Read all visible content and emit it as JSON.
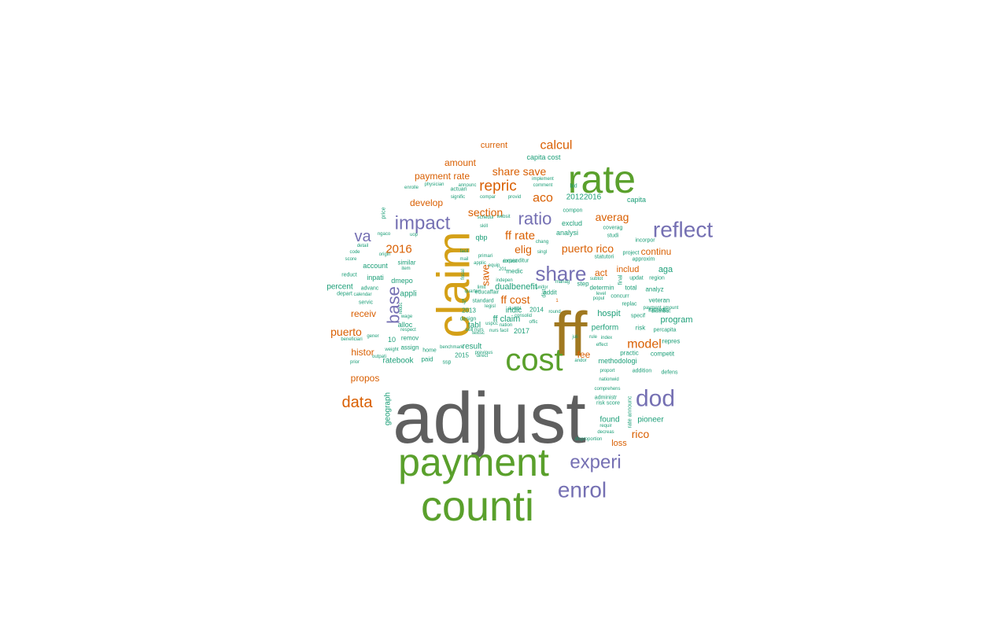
{
  "colors": {
    "gray": "#5f5f5f",
    "green": "#5aa02c",
    "gold": "#d4a017",
    "olive": "#a07820",
    "purple": "#7570b3",
    "orange": "#d95f02",
    "teal": "#1b9e77"
  },
  "words": [
    {
      "text": "adjust",
      "color": "gray"
    },
    {
      "text": "ff",
      "color": "olive"
    },
    {
      "text": "rate",
      "color": "green"
    },
    {
      "text": "counti",
      "color": "green"
    },
    {
      "text": "payment",
      "color": "green"
    },
    {
      "text": "claim",
      "color": "gold"
    },
    {
      "text": "cost",
      "color": "green"
    },
    {
      "text": "dod",
      "color": "purple"
    },
    {
      "text": "enrol",
      "color": "purple"
    },
    {
      "text": "reflect",
      "color": "purple"
    },
    {
      "text": "share",
      "color": "purple"
    },
    {
      "text": "impact",
      "color": "purple"
    },
    {
      "text": "experi",
      "color": "purple"
    },
    {
      "text": "ratio",
      "color": "purple"
    },
    {
      "text": "base",
      "color": "purple"
    },
    {
      "text": "va",
      "color": "purple"
    },
    {
      "text": "data",
      "color": "orange"
    },
    {
      "text": "repric",
      "color": "orange"
    },
    {
      "text": "model",
      "color": "orange"
    },
    {
      "text": "calcul",
      "color": "orange"
    },
    {
      "text": "aco",
      "color": "orange"
    },
    {
      "text": "averag",
      "color": "orange"
    },
    {
      "text": "section",
      "color": "orange"
    },
    {
      "text": "share save",
      "color": "orange"
    },
    {
      "text": "ff rate",
      "color": "orange"
    },
    {
      "text": "ff cost",
      "color": "orange"
    },
    {
      "text": "puerto rico",
      "color": "orange"
    },
    {
      "text": "puerto",
      "color": "orange"
    },
    {
      "text": "rico",
      "color": "orange"
    },
    {
      "text": "2016",
      "color": "orange"
    },
    {
      "text": "elig",
      "color": "orange"
    },
    {
      "text": "save",
      "color": "orange"
    },
    {
      "text": "fee",
      "color": "orange"
    },
    {
      "text": "develop",
      "color": "orange"
    },
    {
      "text": "amount",
      "color": "orange"
    },
    {
      "text": "payment rate",
      "color": "orange"
    },
    {
      "text": "propos",
      "color": "orange"
    },
    {
      "text": "histor",
      "color": "orange"
    },
    {
      "text": "continu",
      "color": "orange"
    },
    {
      "text": "act",
      "color": "orange"
    },
    {
      "text": "includ",
      "color": "orange"
    },
    {
      "text": "current",
      "color": "orange"
    },
    {
      "text": "receiv",
      "color": "orange"
    },
    {
      "text": "loss",
      "color": "orange"
    },
    {
      "text": "program",
      "color": "teal"
    },
    {
      "text": "aga",
      "color": "teal"
    },
    {
      "text": "hospit",
      "color": "teal"
    },
    {
      "text": "dualbenefit",
      "color": "teal"
    },
    {
      "text": "ff claim",
      "color": "teal"
    },
    {
      "text": "indic",
      "color": "teal"
    },
    {
      "text": "tabl",
      "color": "teal"
    },
    {
      "text": "result",
      "color": "teal"
    },
    {
      "text": "appli",
      "color": "teal"
    },
    {
      "text": "alloc",
      "color": "teal"
    },
    {
      "text": "dmepo",
      "color": "teal"
    },
    {
      "text": "percent",
      "color": "teal"
    },
    {
      "text": "inpati",
      "color": "teal"
    },
    {
      "text": "ratebook",
      "color": "teal"
    },
    {
      "text": "geograph",
      "color": "teal"
    },
    {
      "text": "perform",
      "color": "teal"
    },
    {
      "text": "methodologi",
      "color": "teal"
    },
    {
      "text": "found",
      "color": "teal"
    },
    {
      "text": "pioneer",
      "color": "teal"
    },
    {
      "text": "analysi",
      "color": "teal"
    },
    {
      "text": "exclud",
      "color": "teal"
    },
    {
      "text": "20122016",
      "color": "teal"
    },
    {
      "text": "capita",
      "color": "teal"
    },
    {
      "text": "capita cost",
      "color": "teal"
    },
    {
      "text": "qbp",
      "color": "teal"
    },
    {
      "text": "account",
      "color": "teal"
    },
    {
      "text": "similar",
      "color": "teal"
    },
    {
      "text": "repres",
      "color": "teal"
    },
    {
      "text": "analyz",
      "color": "teal"
    },
    {
      "text": "veteran",
      "color": "teal"
    },
    {
      "text": "increas",
      "color": "teal"
    },
    {
      "text": "competit",
      "color": "teal"
    },
    {
      "text": "practic",
      "color": "teal"
    },
    {
      "text": "paid",
      "color": "teal"
    },
    {
      "text": "assign",
      "color": "teal"
    },
    {
      "text": "remov",
      "color": "teal"
    },
    {
      "text": "2017",
      "color": "teal"
    },
    {
      "text": "2015",
      "color": "teal"
    },
    {
      "text": "2013",
      "color": "teal"
    },
    {
      "text": "2014",
      "color": "teal"
    },
    {
      "text": "medic",
      "color": "teal"
    },
    {
      "text": "determin",
      "color": "teal"
    },
    {
      "text": "step",
      "color": "teal"
    },
    {
      "text": "total",
      "color": "teal"
    },
    {
      "text": "bid",
      "color": "teal"
    },
    {
      "text": "standard",
      "color": "teal"
    },
    {
      "text": "design",
      "color": "teal"
    },
    {
      "text": "reduct",
      "color": "teal"
    },
    {
      "text": "depart",
      "color": "teal"
    },
    {
      "text": "servic",
      "color": "teal"
    },
    {
      "text": "advanc",
      "color": "teal"
    },
    {
      "text": "risk",
      "color": "teal"
    },
    {
      "text": "updat",
      "color": "teal"
    },
    {
      "text": "region",
      "color": "teal"
    },
    {
      "text": "specif",
      "color": "teal"
    },
    {
      "text": "distribut",
      "color": "teal"
    },
    {
      "text": "defens",
      "color": "teal"
    },
    {
      "text": "addition",
      "color": "teal"
    },
    {
      "text": "percapita",
      "color": "teal"
    },
    {
      "text": "incorpor",
      "color": "teal"
    },
    {
      "text": "approxim",
      "color": "teal"
    },
    {
      "text": "project",
      "color": "teal"
    },
    {
      "text": "studi",
      "color": "teal"
    },
    {
      "text": "coverag",
      "color": "teal"
    },
    {
      "text": "compon",
      "color": "teal"
    },
    {
      "text": "statutori",
      "color": "teal"
    },
    {
      "text": "concurr",
      "color": "teal"
    },
    {
      "text": "replac",
      "color": "teal"
    },
    {
      "text": "payment amount",
      "color": "teal"
    },
    {
      "text": "proport",
      "color": "teal"
    },
    {
      "text": "nationwid",
      "color": "teal"
    },
    {
      "text": "comprehens",
      "color": "teal"
    },
    {
      "text": "administr",
      "color": "teal"
    },
    {
      "text": "risk score",
      "color": "teal"
    },
    {
      "text": "requir",
      "color": "teal"
    },
    {
      "text": "decreas",
      "color": "teal"
    },
    {
      "text": "disproportion",
      "color": "teal"
    },
    {
      "text": "rate announc",
      "color": "teal"
    },
    {
      "text": "ssp",
      "color": "teal"
    },
    {
      "text": "benchmark",
      "color": "teal"
    },
    {
      "text": "home",
      "color": "teal"
    },
    {
      "text": "previous",
      "color": "teal"
    },
    {
      "text": "direct",
      "color": "teal"
    },
    {
      "text": "skill nurs",
      "color": "teal"
    },
    {
      "text": "nurs facil",
      "color": "teal"
    },
    {
      "text": "nation",
      "color": "teal"
    },
    {
      "text": "offic",
      "color": "teal"
    },
    {
      "text": "consolid",
      "color": "teal"
    },
    {
      "text": "durabl",
      "color": "teal"
    },
    {
      "text": "educaffair",
      "color": "teal"
    },
    {
      "text": "expenditur",
      "color": "teal"
    },
    {
      "text": "applic",
      "color": "teal"
    },
    {
      "text": "equip",
      "color": "teal"
    },
    {
      "text": "consist",
      "color": "teal"
    },
    {
      "text": "primari",
      "color": "teal"
    },
    {
      "text": "mail",
      "color": "teal"
    },
    {
      "text": "facil",
      "color": "teal"
    },
    {
      "text": "skill",
      "color": "teal"
    },
    {
      "text": "schedul",
      "color": "teal"
    },
    {
      "text": "websit",
      "color": "teal"
    },
    {
      "text": "compar",
      "color": "teal"
    },
    {
      "text": "provid",
      "color": "teal"
    },
    {
      "text": "announc",
      "color": "teal"
    },
    {
      "text": "comment",
      "color": "teal"
    },
    {
      "text": "implement",
      "color": "teal"
    },
    {
      "text": "actuari",
      "color": "teal"
    },
    {
      "text": "signific",
      "color": "teal"
    },
    {
      "text": "enrolle",
      "color": "teal"
    },
    {
      "text": "physician",
      "color": "teal"
    },
    {
      "text": "price",
      "color": "teal"
    },
    {
      "text": "ngaco",
      "color": "teal"
    },
    {
      "text": "uop",
      "color": "teal"
    },
    {
      "text": "detail",
      "color": "teal"
    },
    {
      "text": "code",
      "color": "teal"
    },
    {
      "text": "score",
      "color": "teal"
    },
    {
      "text": "origin",
      "color": "teal"
    },
    {
      "text": "item",
      "color": "teal"
    },
    {
      "text": "calendar",
      "color": "teal"
    },
    {
      "text": "reduc",
      "color": "teal"
    },
    {
      "text": "wage",
      "color": "teal"
    },
    {
      "text": "respect",
      "color": "teal"
    },
    {
      "text": "beneficiari",
      "color": "teal"
    },
    {
      "text": "gener",
      "color": "teal"
    },
    {
      "text": "outpati",
      "color": "teal"
    },
    {
      "text": "prior",
      "color": "teal"
    },
    {
      "text": "weight",
      "color": "teal"
    },
    {
      "text": "uspcc",
      "color": "teal"
    },
    {
      "text": "legisl",
      "color": "teal"
    },
    {
      "text": "round",
      "color": "teal"
    },
    {
      "text": "juli",
      "color": "teal"
    },
    {
      "text": "rule",
      "color": "teal"
    },
    {
      "text": "index",
      "color": "teal"
    },
    {
      "text": "effect",
      "color": "teal"
    },
    {
      "text": "andor",
      "color": "teal"
    },
    {
      "text": "level",
      "color": "teal"
    },
    {
      "text": "popul",
      "color": "teal"
    },
    {
      "text": "manag",
      "color": "teal"
    },
    {
      "text": "chang",
      "color": "teal"
    },
    {
      "text": "singl",
      "color": "teal"
    },
    {
      "text": "final",
      "color": "teal"
    },
    {
      "text": "addit",
      "color": "teal"
    },
    {
      "text": "fy",
      "color": "teal"
    },
    {
      "text": "10",
      "color": "teal"
    },
    {
      "text": "1",
      "color": "orange"
    },
    {
      "text": "fiscal",
      "color": "teal"
    },
    {
      "text": "indepen",
      "color": "teal"
    },
    {
      "text": "quarter",
      "color": "teal"
    },
    {
      "text": "limit",
      "color": "teal"
    },
    {
      "text": "textsc",
      "color": "teal"
    },
    {
      "text": "dist",
      "color": "teal"
    },
    {
      "text": "unifor",
      "color": "teal"
    },
    {
      "text": "201",
      "color": "teal"
    },
    {
      "text": "subtot",
      "color": "teal"
    },
    {
      "text": "inform",
      "color": "teal"
    },
    {
      "text": "act",
      "color": "teal"
    }
  ]
}
